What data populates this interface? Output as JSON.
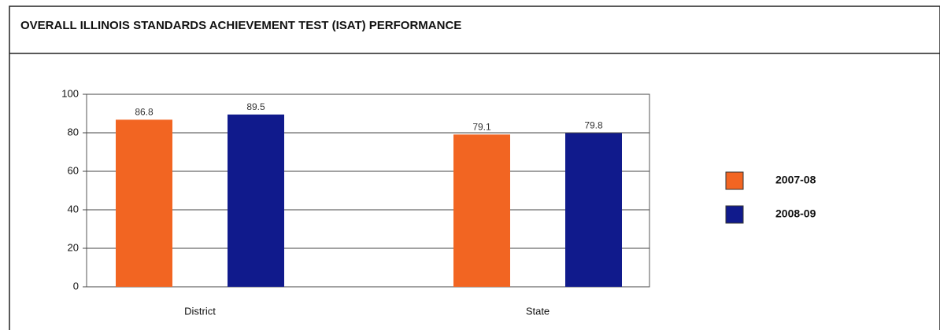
{
  "chart_data": {
    "type": "bar",
    "title": "OVERALL ILLINOIS STANDARDS ACHIEVEMENT TEST (ISAT) PERFORMANCE",
    "categories": [
      "District",
      "State"
    ],
    "series": [
      {
        "name": "2007-08",
        "color": "#f26522",
        "values": [
          86.8,
          79.1
        ]
      },
      {
        "name": "2008-09",
        "color": "#101a8c",
        "values": [
          89.5,
          79.8
        ]
      }
    ],
    "ylim": [
      0,
      100
    ],
    "yticks": [
      0,
      20,
      40,
      60,
      80,
      100
    ],
    "grid": true
  }
}
